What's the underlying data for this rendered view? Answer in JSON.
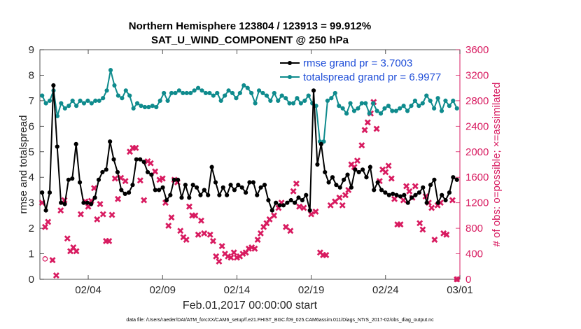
{
  "chart_data": {
    "type": "line",
    "title_lines": [
      "Northern Hemisphere 123804 / 123913 = 99.912%",
      "SAT_U_WIND_COMPONENT @ 250 hPa"
    ],
    "xlabel": "Feb.01,2017 00:00:00 start",
    "ylabel_left": "rmse and totalspread",
    "ylabel_right": "# of obs: o=possible; ×=assimilated",
    "footnote": "data file: /Users/raeder/DAI/ATM_forcXX/CAM6_setup/f.e21.FHIST_BGC.f09_025.CAM6assim.011/Diags_NTrS_2017-02/obs_diag_output.nc",
    "x_ticks": [
      "02/04",
      "02/09",
      "02/14",
      "02/19",
      "02/24",
      "03/01"
    ],
    "x_tick_days": [
      4,
      9,
      14,
      19,
      24,
      29
    ],
    "xlim": [
      0.75,
      29.0
    ],
    "ylim_left": [
      0,
      9
    ],
    "y_ticks_left": [
      "0",
      "1",
      "2",
      "3",
      "4",
      "5",
      "6",
      "7",
      "8",
      "9"
    ],
    "ylim_right": [
      0,
      3600
    ],
    "y_ticks_right": [
      "0",
      "400",
      "800",
      "1200",
      "1600",
      "2000",
      "2400",
      "2800",
      "3200",
      "3600"
    ],
    "grid": false,
    "legend_position": "top-right",
    "colors": {
      "rmse": "#000000",
      "totalspread": "#0f8b8d",
      "obs": "#d81b60",
      "legend_text": "#1f4ed8"
    },
    "series": [
      {
        "name": "rmse grand pr = 3.7003",
        "values": [
          3.4,
          2.7,
          3.4,
          7.6,
          5.2,
          3.0,
          2.95,
          3.9,
          3.95,
          5.3,
          3.8,
          3.0,
          3.0,
          2.95,
          3.2,
          3.9,
          4.2,
          4.3,
          5.4,
          4.7,
          4.2,
          3.5,
          3.35,
          3.4,
          3.7,
          4.7,
          4.7,
          4.6,
          4.2,
          4.1,
          3.5,
          3.5,
          3.6,
          3.1,
          3.3,
          3.9,
          3.9,
          3.2,
          3.7,
          3.2,
          3.7,
          3.6,
          3.3,
          3.5,
          3.3,
          4.4,
          3.8,
          3.3,
          3.6,
          3.3,
          3.7,
          3.5,
          3.7,
          3.6,
          3.4,
          3.8,
          3.8,
          3.3,
          3.6,
          3.7,
          3.1,
          2.7,
          3.0,
          2.9,
          2.9,
          3.0,
          3.1,
          3.0,
          3.2,
          3.1,
          3.3,
          2.7,
          7.4,
          4.5,
          5.3,
          4.2,
          3.8,
          4.0,
          3.7,
          3.6,
          3.9,
          4.1,
          3.6,
          4.3,
          4.2,
          4.3,
          4.0,
          4.4,
          3.5,
          3.8,
          3.5,
          3.4,
          3.3,
          3.35,
          3.3,
          3.25,
          3.3,
          3.0,
          3.2,
          3.3,
          3.4,
          3.6,
          3.0,
          3.7,
          3.9,
          3.0,
          3.3,
          3.1,
          3.4,
          4.0,
          3.9
        ]
      },
      {
        "name": "totalspread grand pr = 6.9977",
        "values": [
          7.2,
          6.9,
          7.0,
          7.4,
          6.4,
          6.9,
          6.7,
          6.8,
          7.0,
          6.8,
          7.0,
          6.9,
          7.0,
          6.9,
          7.0,
          7.0,
          7.1,
          7.4,
          8.2,
          7.6,
          7.2,
          7.1,
          7.4,
          7.2,
          6.7,
          6.9,
          6.8,
          6.75,
          6.75,
          6.8,
          6.75,
          7.0,
          7.3,
          7.0,
          7.3,
          7.3,
          7.4,
          7.3,
          7.3,
          7.3,
          7.4,
          7.5,
          7.4,
          7.3,
          7.3,
          7.2,
          7.3,
          7.0,
          7.2,
          7.4,
          7.3,
          7.1,
          7.3,
          7.6,
          7.5,
          7.3,
          6.9,
          7.4,
          7.3,
          7.2,
          7.0,
          7.3,
          7.0,
          7.2,
          7.1,
          6.9,
          6.9,
          7.1,
          6.9,
          7.0,
          7.2,
          6.9,
          6.8,
          5.4,
          5.4,
          7.0,
          7.1,
          7.3,
          6.8,
          6.7,
          6.5,
          6.9,
          6.6,
          6.7,
          6.9,
          6.9,
          6.5,
          6.9,
          6.6,
          6.5,
          6.7,
          6.8,
          6.6,
          6.6,
          6.7,
          6.8,
          6.6,
          6.8,
          7.0,
          6.8,
          6.9,
          7.2,
          7.0,
          6.7,
          7.1,
          6.6,
          7.0,
          6.8,
          7.0,
          6.7
        ]
      },
      {
        "name": "assimilated",
        "points": [
          [
            0.9,
            1200
          ],
          [
            1.1,
            820
          ],
          [
            1.3,
            900
          ],
          [
            1.6,
            300
          ],
          [
            1.85,
            60
          ],
          [
            2.15,
            1080
          ],
          [
            2.4,
            1240
          ],
          [
            2.6,
            640
          ],
          [
            2.8,
            440
          ],
          [
            3.0,
            500
          ],
          [
            3.2,
            440
          ],
          [
            3.5,
            1020
          ],
          [
            3.8,
            1220
          ],
          [
            4.0,
            1140
          ],
          [
            4.2,
            1230
          ],
          [
            4.4,
            1430
          ],
          [
            4.6,
            940
          ],
          [
            4.8,
            1180
          ],
          [
            5.0,
            1020
          ],
          [
            5.2,
            600
          ],
          [
            5.4,
            600
          ],
          [
            5.6,
            1010
          ],
          [
            5.8,
            1580
          ],
          [
            6.0,
            1260
          ],
          [
            6.2,
            1590
          ],
          [
            6.5,
            1540
          ],
          [
            6.8,
            2000
          ],
          [
            7.0,
            2060
          ],
          [
            7.2,
            2060
          ],
          [
            7.5,
            1550
          ],
          [
            7.75,
            1240
          ],
          [
            8.0,
            1850
          ],
          [
            8.2,
            1820
          ],
          [
            8.5,
            1690
          ],
          [
            8.8,
            1560
          ],
          [
            9.0,
            1580
          ],
          [
            9.2,
            1200
          ],
          [
            9.4,
            840
          ],
          [
            9.6,
            970
          ],
          [
            9.8,
            1560
          ],
          [
            10.0,
            1520
          ],
          [
            10.2,
            760
          ],
          [
            10.4,
            660
          ],
          [
            10.6,
            620
          ],
          [
            10.8,
            1140
          ],
          [
            11.0,
            1000
          ],
          [
            11.2,
            1000
          ],
          [
            11.4,
            700
          ],
          [
            11.6,
            920
          ],
          [
            11.8,
            720
          ],
          [
            12.2,
            700
          ],
          [
            12.4,
            600
          ],
          [
            12.6,
            360
          ],
          [
            12.8,
            280
          ],
          [
            13.0,
            520
          ],
          [
            13.2,
            400
          ],
          [
            13.4,
            360
          ],
          [
            13.6,
            340
          ],
          [
            13.8,
            420
          ],
          [
            14.0,
            340
          ],
          [
            14.2,
            360
          ],
          [
            14.4,
            400
          ],
          [
            14.6,
            420
          ],
          [
            14.8,
            480
          ],
          [
            15.0,
            500
          ],
          [
            15.2,
            480
          ],
          [
            15.4,
            620
          ],
          [
            15.6,
            720
          ],
          [
            15.8,
            820
          ],
          [
            16.0,
            880
          ],
          [
            16.2,
            940
          ],
          [
            16.5,
            1000
          ],
          [
            16.8,
            1120
          ],
          [
            17.0,
            1200
          ],
          [
            17.3,
            820
          ],
          [
            17.6,
            760
          ],
          [
            17.8,
            1380
          ],
          [
            18.0,
            1500
          ],
          [
            18.2,
            1140
          ],
          [
            18.5,
            1120
          ],
          [
            19.0,
            1020
          ],
          [
            19.3,
            1060
          ],
          [
            19.6,
            420
          ],
          [
            19.8,
            380
          ],
          [
            20.0,
            380
          ],
          [
            20.3,
            1160
          ],
          [
            20.6,
            1220
          ],
          [
            20.9,
            1280
          ],
          [
            21.1,
            1160
          ],
          [
            21.3,
            1320
          ],
          [
            21.5,
            1400
          ],
          [
            21.7,
            1800
          ],
          [
            21.9,
            1760
          ],
          [
            22.1,
            1860
          ],
          [
            22.4,
            2100
          ],
          [
            22.6,
            2340
          ],
          [
            22.8,
            2460
          ],
          [
            23.0,
            2600
          ],
          [
            23.2,
            2780
          ],
          [
            23.4,
            2360
          ],
          [
            23.6,
            1540
          ],
          [
            23.8,
            1720
          ],
          [
            24.0,
            1680
          ],
          [
            24.2,
            1780
          ],
          [
            24.4,
            1580
          ],
          [
            24.6,
            1260
          ],
          [
            24.8,
            860
          ],
          [
            25.0,
            860
          ],
          [
            25.2,
            1240
          ],
          [
            25.4,
            1460
          ],
          [
            25.6,
            1380
          ],
          [
            25.8,
            1280
          ],
          [
            26.0,
            1460
          ],
          [
            26.3,
            880
          ],
          [
            26.5,
            780
          ],
          [
            26.7,
            1300
          ],
          [
            26.9,
            1200
          ],
          [
            27.1,
            1120
          ],
          [
            27.3,
            620
          ],
          [
            27.5,
            1160
          ],
          [
            27.7,
            1200
          ],
          [
            27.9,
            720
          ],
          [
            28.1,
            700
          ],
          [
            28.5,
            1240
          ],
          [
            28.8,
            0
          ]
        ]
      },
      {
        "name": "possible",
        "points": [
          [
            1.1,
            320
          ],
          [
            28.8,
            0
          ]
        ]
      }
    ]
  }
}
